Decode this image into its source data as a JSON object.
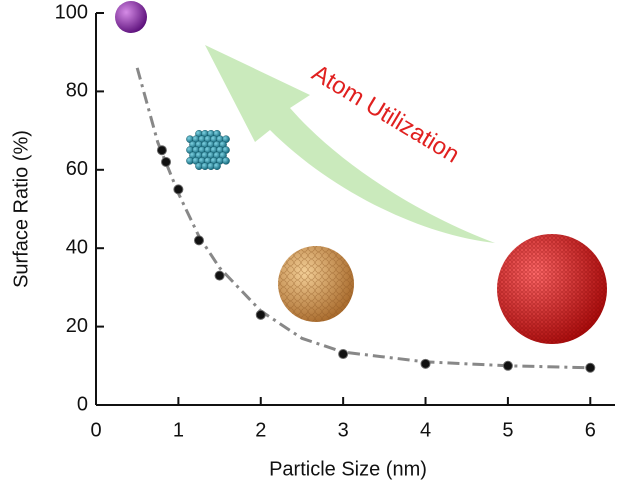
{
  "chart_data": {
    "type": "scatter",
    "x_label": "Particle Size (nm)",
    "y_label": "Surface Ratio (%)",
    "annotation": "Atom Utilization",
    "x": [
      0.8,
      0.85,
      1.0,
      1.25,
      1.5,
      2,
      3,
      4,
      5,
      6
    ],
    "values": [
      65,
      62,
      55,
      42,
      33,
      23,
      13,
      10.5,
      10,
      9.5
    ],
    "color": "#111111",
    "fit": {
      "x": [
        0.5,
        0.75,
        1,
        1.25,
        1.5,
        2,
        2.5,
        3,
        4,
        5,
        6
      ],
      "values": [
        86,
        67,
        54,
        43,
        35,
        24,
        17,
        13.5,
        11,
        10,
        9.5
      ],
      "color": "#888888"
    },
    "xlim": [
      0,
      6.3
    ],
    "xticks": [
      0,
      1,
      2,
      3,
      4,
      5,
      6
    ],
    "ylim": [
      0,
      100
    ],
    "yticks": [
      0,
      20,
      40,
      60,
      80,
      100
    ]
  }
}
